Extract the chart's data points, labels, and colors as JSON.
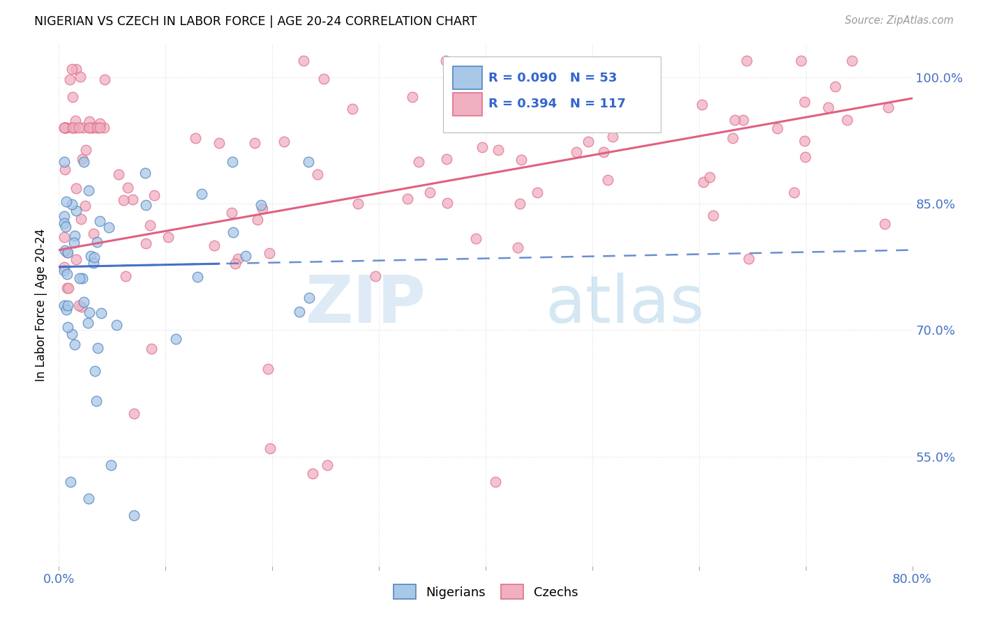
{
  "title": "NIGERIAN VS CZECH IN LABOR FORCE | AGE 20-24 CORRELATION CHART",
  "source": "Source: ZipAtlas.com",
  "ylabel": "In Labor Force | Age 20-24",
  "xlim": [
    0.0,
    0.8
  ],
  "ylim": [
    0.42,
    1.04
  ],
  "xtick_positions": [
    0.0,
    0.1,
    0.2,
    0.3,
    0.4,
    0.5,
    0.6,
    0.7,
    0.8
  ],
  "xticklabels": [
    "0.0%",
    "",
    "",
    "",
    "",
    "",
    "",
    "",
    "80.0%"
  ],
  "ytick_positions": [
    0.55,
    0.7,
    0.85,
    1.0
  ],
  "ytick_labels": [
    "55.0%",
    "70.0%",
    "85.0%",
    "100.0%"
  ],
  "nigerian_fill_color": "#a8c8e8",
  "nigerian_edge_color": "#5585c0",
  "czech_fill_color": "#f0b0c0",
  "czech_edge_color": "#e07090",
  "nigerian_line_color": "#4472c4",
  "czech_line_color": "#e06080",
  "nigerian_R": 0.09,
  "nigerian_N": 53,
  "czech_R": 0.394,
  "czech_N": 117,
  "legend_R_color": "#3366cc",
  "grid_color": "#cccccc",
  "tick_color": "#4472c4"
}
